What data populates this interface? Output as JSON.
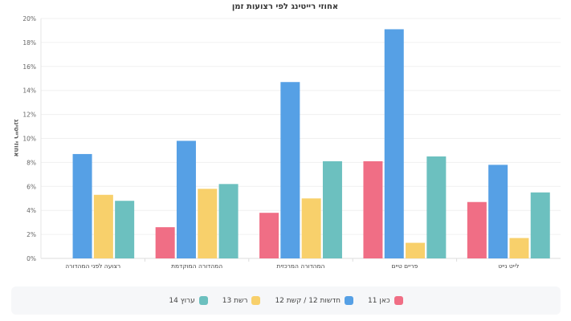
{
  "chart_data": {
    "type": "bar",
    "title": "אחוזי רייטינג לפי רצועות זמן",
    "ylabel": "אחוזי רייטינג",
    "xlabel": "",
    "ylim": [
      0,
      20
    ],
    "yticks": [
      "0%",
      "2%",
      "4%",
      "6%",
      "8%",
      "10%",
      "12%",
      "14%",
      "16%",
      "18%",
      "20%"
    ],
    "grid": true,
    "legend_position": "bottom",
    "categories": [
      "רצועה לפני המהדורה",
      "המהדורה המוקדמת",
      "המהדורה המרכזית",
      "פריים טיים",
      "לייט נייט"
    ],
    "series": [
      {
        "name": "כאן 11",
        "color": "#f06e85",
        "values": [
          null,
          2.6,
          3.8,
          8.1,
          4.7
        ]
      },
      {
        "name": "חדשות 12 / קשת 12",
        "color": "#56a0e5",
        "values": [
          8.7,
          9.8,
          14.7,
          19.1,
          7.8
        ]
      },
      {
        "name": "רשת 13",
        "color": "#f8d06b",
        "values": [
          5.3,
          5.8,
          5.0,
          1.3,
          1.7
        ]
      },
      {
        "name": "ערוץ 14",
        "color": "#6cc0bf",
        "values": [
          4.8,
          6.2,
          8.1,
          8.5,
          5.5
        ]
      }
    ]
  }
}
